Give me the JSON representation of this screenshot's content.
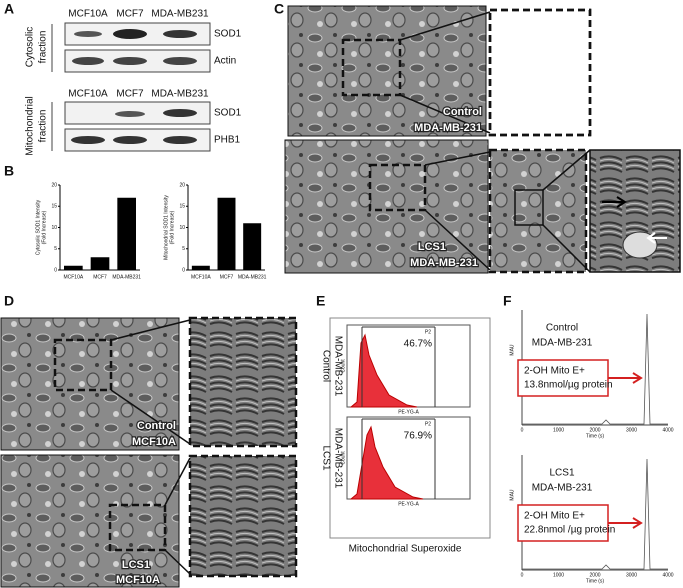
{
  "panel_a": {
    "label": "A",
    "cell_lines_top": [
      "MCF10A",
      "MCF7",
      "MDA-MB231"
    ],
    "cell_lines_bottom": [
      "MCF10A",
      "MCF7",
      "MDA-MB231"
    ],
    "blots_top": [
      "SOD1",
      "Actin"
    ],
    "blots_bottom": [
      "SOD1",
      "PHB1"
    ],
    "fraction_top": [
      "Cytosolic",
      "fraction"
    ],
    "fraction_bottom": [
      "Mitochondrial",
      "fraction"
    ]
  },
  "panel_b": {
    "label": "B"
  },
  "chart_data": [
    {
      "type": "bar",
      "ylabel": [
        "Cytosolic SOD1 Intensity",
        "(Fold Increase)"
      ],
      "categories": [
        "MCF10A",
        "MCF7",
        "MDA-MB231"
      ],
      "values": [
        1,
        3,
        17
      ],
      "color": "#000000",
      "ylim": [
        0,
        20
      ],
      "yticks": [
        0,
        5,
        10,
        15,
        20
      ]
    },
    {
      "type": "bar",
      "ylabel": [
        "Mitochondrial SOD1 Intensity",
        "(Fold Increase)"
      ],
      "categories": [
        "MCF10A",
        "MCF7",
        "MDA-MB231"
      ],
      "values": [
        1,
        17,
        11
      ],
      "color": "#000000",
      "ylim": [
        0,
        20
      ],
      "yticks": [
        0,
        5,
        10,
        15,
        20
      ]
    }
  ],
  "panel_c": {
    "label": "C",
    "control": [
      "Control",
      "MDA-MB-231"
    ],
    "treated": [
      "LCS1",
      "MDA-MB-231"
    ]
  },
  "panel_d": {
    "label": "D",
    "control": [
      "Control",
      "MCF10A"
    ],
    "treated": [
      "LCS1",
      "MCF10A"
    ]
  },
  "panel_e": {
    "label": "E",
    "plots": [
      {
        "condition": [
          "Control",
          "MDA-MB-231"
        ],
        "gate": "P2",
        "percent": "46.7%"
      },
      {
        "condition": [
          "LCS1",
          "MDA-MB-231"
        ],
        "gate": "P2",
        "percent": "76.9%"
      }
    ],
    "x_label": "PE-YG-A",
    "y_label": "Count",
    "caption": "Mitochondrial Superoxide"
  },
  "panel_f": {
    "label": "F",
    "plots": [
      {
        "condition": [
          "Control",
          "MDA-MB-231"
        ],
        "box": [
          "2-OH Mito E+",
          "13.8nmol/µg protein"
        ]
      },
      {
        "condition": [
          "LCS1",
          "MDA-MB-231"
        ],
        "box": [
          "2-OH Mito E+",
          "22.8nmol /µg protein"
        ]
      }
    ],
    "x_label": "Time (s)",
    "y_label": "MAU",
    "xticks": [
      "0",
      "1000",
      "2000",
      "3000",
      "4000"
    ]
  }
}
